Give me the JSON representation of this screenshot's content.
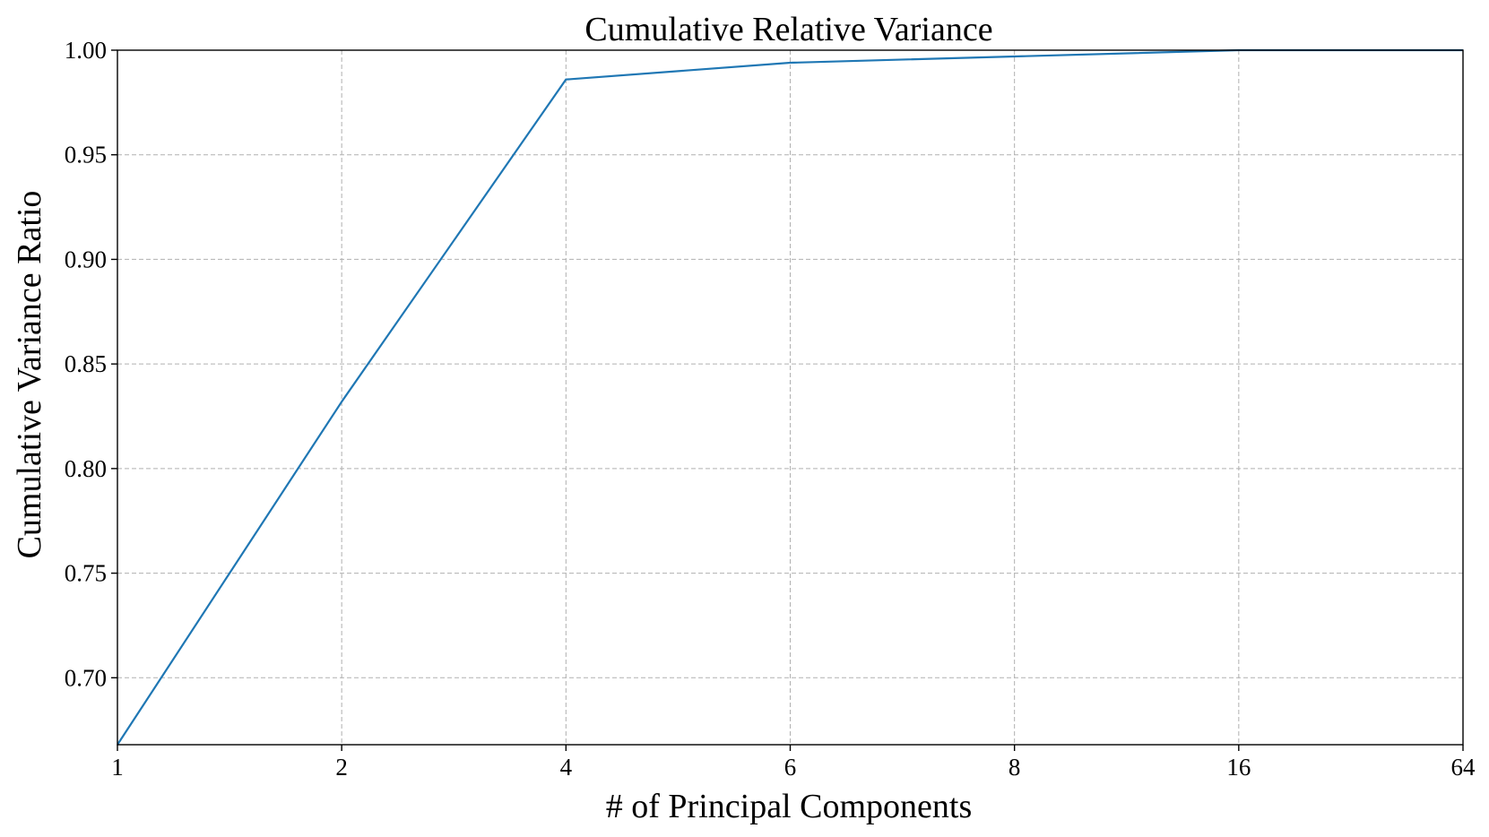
{
  "chart_data": {
    "type": "line",
    "title": "Cumulative Relative Variance",
    "xlabel": "# of Principal Components",
    "ylabel": "Cumulative Variance Ratio",
    "x_scale": "categorical-evenly-spaced",
    "x_ticks": [
      "1",
      "2",
      "4",
      "6",
      "8",
      "16",
      "64"
    ],
    "y_ticks": [
      "0.70",
      "0.75",
      "0.80",
      "0.85",
      "0.90",
      "0.95",
      "1.00"
    ],
    "y_tick_values": [
      0.7,
      0.75,
      0.8,
      0.85,
      0.9,
      0.95,
      1.0
    ],
    "ylim": [
      0.668,
      1.0
    ],
    "grid": true,
    "series": [
      {
        "x": [
          "1",
          "2",
          "4",
          "6",
          "8",
          "16",
          "64"
        ],
        "values": [
          0.668,
          0.832,
          0.986,
          0.994,
          0.997,
          1.0,
          1.0
        ],
        "color": "#1f77b4"
      }
    ]
  }
}
